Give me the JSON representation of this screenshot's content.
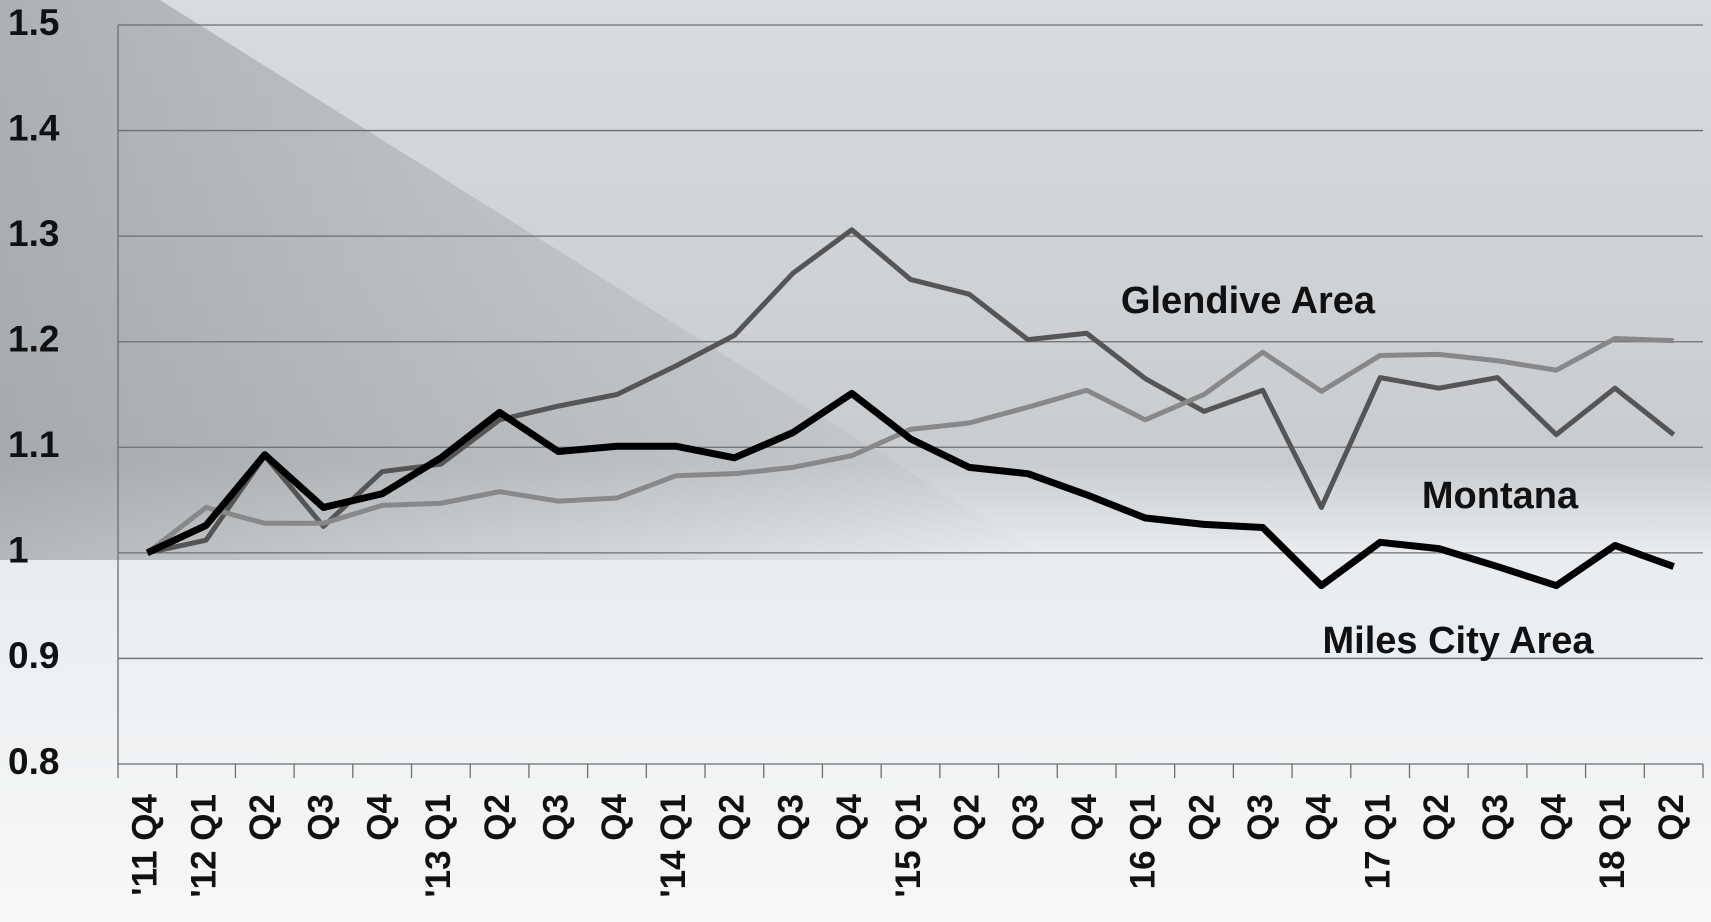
{
  "chart_data": {
    "type": "line",
    "categories": [
      "'11 Q4",
      "'12 Q1",
      "Q2",
      "Q3",
      "Q4",
      "'13 Q1",
      "Q2",
      "Q3",
      "Q4",
      "'14 Q1",
      "Q2",
      "Q3",
      "Q4",
      "'15 Q1",
      "Q2",
      "Q3",
      "Q4",
      "16 Q1",
      "Q2",
      "Q3",
      "Q4",
      "17 Q1",
      "Q2",
      "Q3",
      "Q4",
      "18 Q1",
      "Q2"
    ],
    "series": [
      {
        "name": "Glendive Area",
        "color": "#555555",
        "values": [
          1.0,
          1.012,
          1.092,
          1.025,
          1.077,
          1.084,
          1.126,
          1.139,
          1.15,
          1.177,
          1.206,
          1.265,
          1.306,
          1.259,
          1.245,
          1.202,
          1.208,
          1.165,
          1.134,
          1.154,
          1.043,
          1.166,
          1.156,
          1.166,
          1.112,
          1.156,
          1.112
        ]
      },
      {
        "name": "Montana",
        "color": "#888888",
        "values": [
          1.0,
          1.043,
          1.028,
          1.028,
          1.045,
          1.047,
          1.058,
          1.049,
          1.052,
          1.073,
          1.075,
          1.081,
          1.092,
          1.117,
          1.123,
          1.138,
          1.154,
          1.126,
          1.15,
          1.19,
          1.153,
          1.187,
          1.188,
          1.182,
          1.173,
          1.203,
          1.201
        ]
      },
      {
        "name": "Miles City Area",
        "color": "#000000",
        "values": [
          1.0,
          1.026,
          1.093,
          1.043,
          1.056,
          1.09,
          1.133,
          1.096,
          1.101,
          1.101,
          1.09,
          1.114,
          1.151,
          1.108,
          1.081,
          1.075,
          1.055,
          1.033,
          1.027,
          1.024,
          0.969,
          1.01,
          1.004,
          0.987,
          0.969,
          1.007,
          0.987
        ]
      }
    ],
    "ylim": [
      0.8,
      1.5
    ],
    "yticks": [
      0.8,
      0.9,
      1,
      1.1,
      1.2,
      1.3,
      1.4,
      1.5
    ],
    "grid": true
  }
}
